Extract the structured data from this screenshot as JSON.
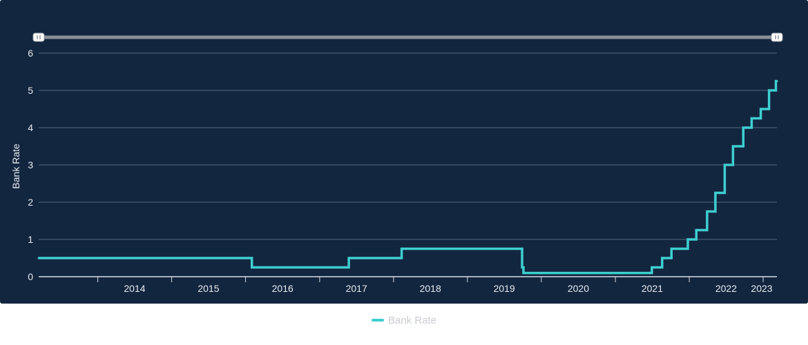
{
  "colors": {
    "background": "#132640",
    "line": "#3ecfd0",
    "grid": "#5a6b80",
    "text": "#e8ecf0",
    "navigator": "#8a8f96",
    "legend_text": "#c8ccd2"
  },
  "chart_data": {
    "type": "line",
    "line_style": "step",
    "xlabel": "",
    "ylabel": "Bank Rate",
    "ylim": [
      0,
      6
    ],
    "y_ticks": [
      0,
      1,
      2,
      3,
      4,
      5,
      6
    ],
    "xlim": [
      "2013-03-15",
      "2023-03-10"
    ],
    "x_tick_labels": [
      "2014",
      "2015",
      "2016",
      "2017",
      "2018",
      "2019",
      "2020",
      "2021",
      "2022",
      "2023"
    ],
    "grid": true,
    "legend_position": "bottom-center",
    "series": [
      {
        "name": "Bank Rate",
        "points": [
          [
            "2013-03-15",
            0.5
          ],
          [
            "2016-02-01",
            0.25
          ],
          [
            "2017-05-25",
            0.5
          ],
          [
            "2018-02-10",
            0.75
          ],
          [
            "2019-09-28",
            0.25
          ],
          [
            "2019-10-05",
            0.1
          ],
          [
            "2021-06-30",
            0.25
          ],
          [
            "2021-08-20",
            0.5
          ],
          [
            "2021-10-05",
            0.75
          ],
          [
            "2021-12-25",
            1.0
          ],
          [
            "2022-02-05",
            1.25
          ],
          [
            "2022-03-30",
            1.75
          ],
          [
            "2022-05-10",
            2.25
          ],
          [
            "2022-06-25",
            3.0
          ],
          [
            "2022-08-05",
            3.5
          ],
          [
            "2022-09-25",
            4.0
          ],
          [
            "2022-11-05",
            4.25
          ],
          [
            "2022-12-20",
            4.5
          ],
          [
            "2023-01-30",
            5.0
          ],
          [
            "2023-03-05",
            5.25
          ],
          [
            "2023-03-10",
            5.25
          ]
        ]
      }
    ]
  },
  "legend": {
    "items": [
      {
        "label": "Bank Rate"
      }
    ]
  }
}
